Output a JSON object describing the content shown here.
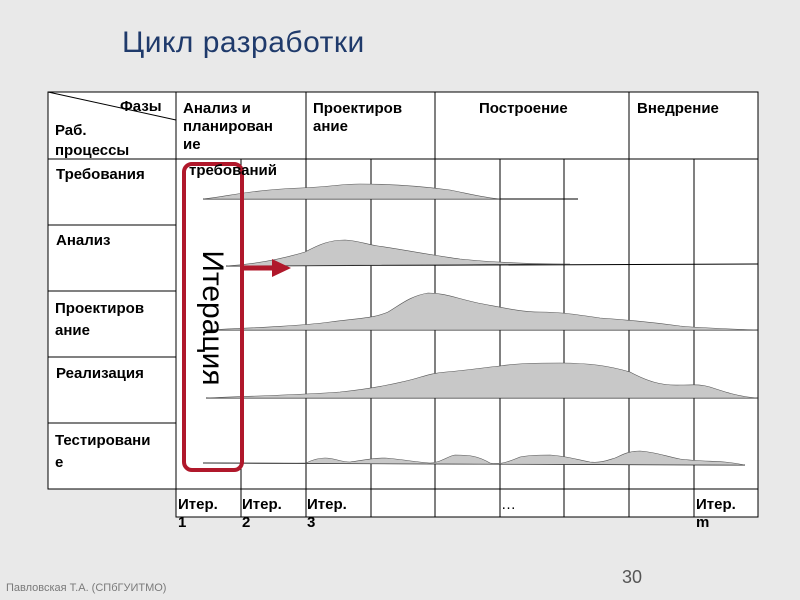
{
  "title": "Цикл разработки",
  "header": {
    "phases_label": "Фазы",
    "processes_label": "Раб.\nпроцессы",
    "phases": [
      "Анализ и\nпланирован\nие",
      "Проектиров\nание",
      "Построение",
      "Внедрение"
    ]
  },
  "processes": [
    "Требования",
    "Анализ",
    "Проектиров\nание",
    "Реализация",
    "Тестировани\nе"
  ],
  "iterations": [
    "Итер.\n1",
    "Итер.\n2",
    "Итер.\n3",
    "…",
    "Итер.\nm"
  ],
  "annotations": {
    "iteration_box_label": "Итерация",
    "partial_text": "требований"
  },
  "colors": {
    "title": "#1f3a6b",
    "iteration_box": "#b0182b",
    "arrow": "#b0182b",
    "curve_fill": "#c8c8c8"
  },
  "footer": "Павловская Т.А. (СПбГУИТМО)",
  "page_number": "30"
}
